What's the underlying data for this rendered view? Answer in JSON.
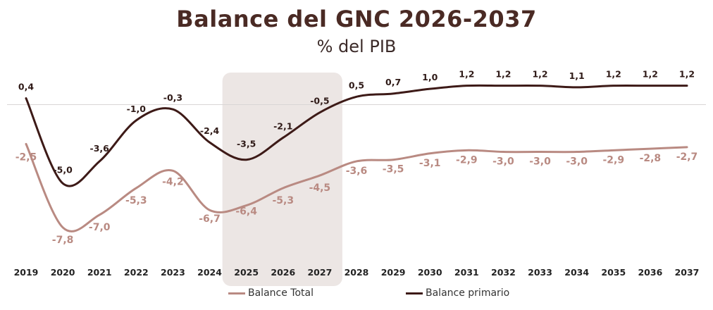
{
  "chart_data": {
    "type": "line",
    "title": "Balance del GNC 2026-2037",
    "subtitle": "% del PIB",
    "categories": [
      "2019",
      "2020",
      "2021",
      "2022",
      "2023",
      "2024",
      "2025",
      "2026",
      "2027",
      "2028",
      "2029",
      "2030",
      "2031",
      "2032",
      "2033",
      "2034",
      "2035",
      "2036",
      "2037"
    ],
    "series": [
      {
        "name": "Balance Total",
        "color": "#b98a82",
        "values": [
          -2.5,
          -7.8,
          -7.0,
          -5.3,
          -4.2,
          -6.7,
          -6.4,
          -5.3,
          -4.5,
          -3.6,
          -3.5,
          -3.1,
          -2.9,
          -3.0,
          -3.0,
          -3.0,
          -2.9,
          -2.8,
          -2.7
        ],
        "labels": [
          "-2,5",
          "-7,8",
          "-7,0",
          "-5,3",
          "-4,2",
          "-6,7",
          "-6,4",
          "-5,3",
          "-4,5",
          "-3,6",
          "-3,5",
          "-3,1",
          "-2,9",
          "-3,0",
          "-3,0",
          "-3,0",
          "-2,9",
          "-2,8",
          "-2,7"
        ]
      },
      {
        "name": "Balance primario",
        "color": "#3d1a17",
        "values": [
          0.4,
          -5.0,
          -3.6,
          -1.0,
          -0.3,
          -2.4,
          -3.5,
          -2.1,
          -0.5,
          0.5,
          0.7,
          1.0,
          1.2,
          1.2,
          1.2,
          1.1,
          1.2,
          1.2,
          1.2
        ],
        "labels": [
          "0,4",
          "-5,0",
          "-3,6",
          "-1,0",
          "-0,3",
          "-2,4",
          "-3,5",
          "-2,1",
          "-0,5",
          "0,5",
          "0,7",
          "1,0",
          "1,2",
          "1,2",
          "1,2",
          "1,1",
          "1,2",
          "1,2",
          "1,2"
        ]
      }
    ],
    "highlight_range": [
      "2025",
      "2027"
    ],
    "ylim": [
      -9.5,
      2.5
    ],
    "zero_line": true,
    "legend_position": "bottom",
    "grid": false
  }
}
